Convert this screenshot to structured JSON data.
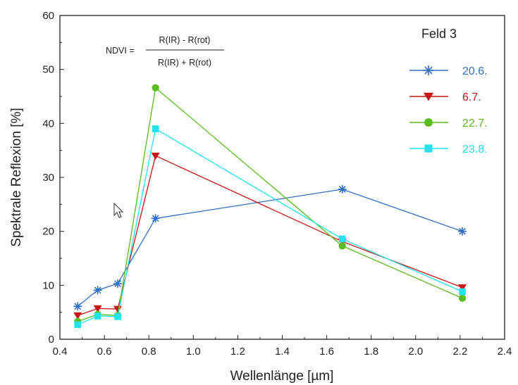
{
  "chart_data": {
    "type": "line",
    "title": "",
    "xlabel": "Wellenlänge [µm]",
    "ylabel": "Spektrale Reflexion [%]",
    "xlim": [
      0.4,
      2.4
    ],
    "ylim": [
      0,
      60
    ],
    "xticks": [
      "0.4",
      "0.6",
      "0.8",
      "1.0",
      "1.2",
      "1.4",
      "1.6",
      "1.8",
      "2.0",
      "2.2",
      "2.4"
    ],
    "yticks": [
      "0",
      "10",
      "20",
      "30",
      "40",
      "50",
      "60"
    ],
    "x": [
      0.48,
      0.57,
      0.66,
      0.83,
      1.67,
      2.21
    ],
    "grid": false,
    "legend_title": "Feld 3",
    "legend_position": "top-right",
    "series": [
      {
        "name": "20.6.",
        "color": "#2e6fc6",
        "marker": "asterisk",
        "values": [
          6.1,
          9.1,
          10.3,
          22.4,
          27.8,
          20.0
        ]
      },
      {
        "name": "6.7.",
        "color": "#c81414",
        "marker": "triangle-down",
        "values": [
          4.4,
          5.7,
          5.6,
          34.0,
          18.1,
          9.6
        ]
      },
      {
        "name": "22.7.",
        "color": "#5cbb1e",
        "marker": "circle",
        "values": [
          3.3,
          4.6,
          4.4,
          46.6,
          17.3,
          7.6
        ]
      },
      {
        "name": "23.8.",
        "color": "#1ee4ee",
        "marker": "square",
        "values": [
          2.7,
          4.3,
          4.2,
          39.0,
          18.6,
          8.8
        ]
      }
    ],
    "annotation": {
      "lhs": "NDVI =",
      "numerator": "R(IR) - R(rot)",
      "denominator": "R(IR) + R(rot)"
    }
  }
}
